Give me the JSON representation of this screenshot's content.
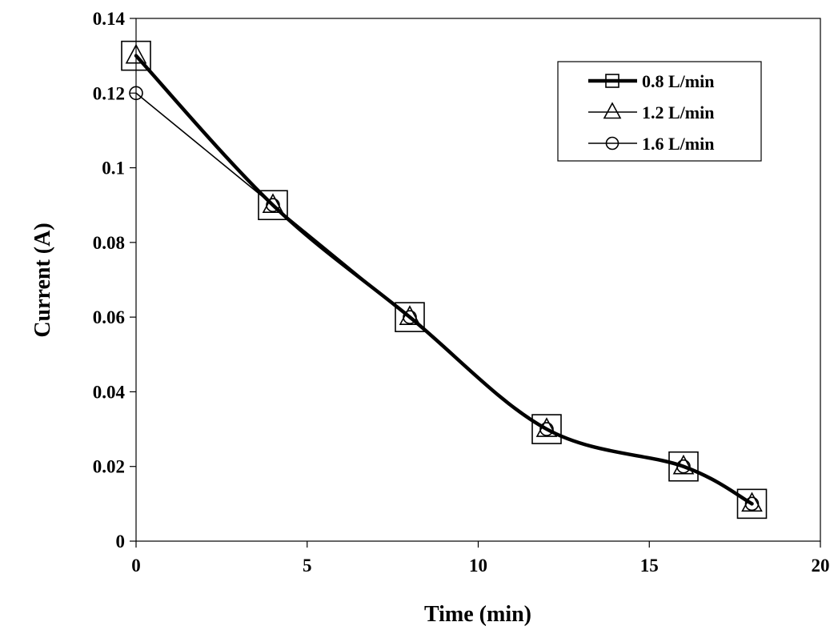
{
  "chart_data": {
    "type": "line",
    "xlabel": "Time (min)",
    "ylabel": "Current (A)",
    "xlim": [
      0,
      20
    ],
    "ylim": [
      0,
      0.14
    ],
    "x_ticks": [
      0,
      5,
      10,
      15,
      20
    ],
    "y_ticks": [
      0,
      0.02,
      0.04,
      0.06,
      0.08,
      0.1,
      0.12,
      0.14
    ],
    "x_tick_labels": [
      "0",
      "5",
      "10",
      "15",
      "20"
    ],
    "y_tick_labels": [
      "0",
      "0.02",
      "0.04",
      "0.06",
      "0.08",
      "0.1",
      "0.12",
      "0.14"
    ],
    "grid": false,
    "legend_position": "top-right",
    "series": [
      {
        "name": "0.8 L/min",
        "marker": "square",
        "line_weight": "thick",
        "x": [
          0,
          4,
          8,
          12,
          16,
          18
        ],
        "y": [
          0.13,
          0.09,
          0.06,
          0.03,
          0.02,
          0.01
        ]
      },
      {
        "name": "1.2 L/min",
        "marker": "triangle",
        "line_weight": "thin",
        "x": [
          0,
          4,
          8,
          12,
          16,
          18
        ],
        "y": [
          0.13,
          0.09,
          0.06,
          0.03,
          0.02,
          0.01
        ]
      },
      {
        "name": "1.6 L/min",
        "marker": "circle",
        "line_weight": "thin",
        "x": [
          0,
          4,
          8,
          12,
          16,
          18
        ],
        "y": [
          0.12,
          0.09,
          0.06,
          0.03,
          0.02,
          0.01
        ]
      }
    ],
    "colors": {
      "line": "#000000",
      "background": "#ffffff"
    }
  }
}
